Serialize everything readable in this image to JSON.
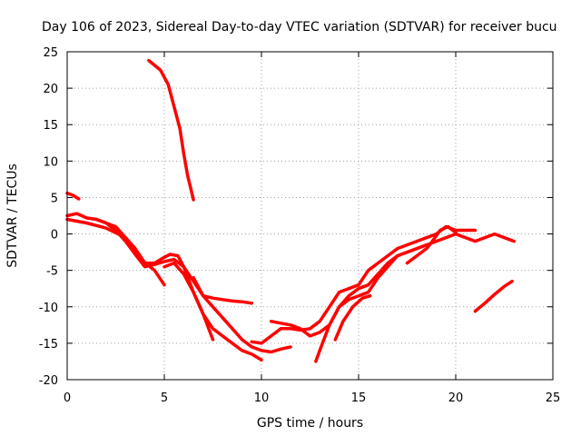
{
  "chart_data": {
    "type": "line",
    "title": "Day 106 of 2023, Sidereal Day-to-day VTEC variation (SDTVAR) for receiver bucu",
    "xlabel": "GPS time / hours",
    "ylabel": "SDTVAR / TECUs",
    "xlim": [
      0,
      25
    ],
    "ylim": [
      -20,
      25
    ],
    "xticks": [
      0,
      5,
      10,
      15,
      20,
      25
    ],
    "yticks": [
      -20,
      -15,
      -10,
      -5,
      0,
      5,
      10,
      15,
      20,
      25
    ],
    "grid": true,
    "color": "#ff0000",
    "series": [
      {
        "name": "seg-a",
        "x": [
          0.0,
          0.3,
          0.6
        ],
        "y": [
          5.6,
          5.3,
          4.8
        ]
      },
      {
        "name": "seg-b",
        "x": [
          0.0,
          0.5,
          1.0,
          1.5,
          2.0,
          2.5,
          3.0,
          3.5,
          4.0,
          4.5,
          5.0,
          5.5,
          6.0,
          6.5,
          7.0,
          7.5,
          8.0,
          8.5,
          9.0,
          9.5
        ],
        "y": [
          2.5,
          2.8,
          2.2,
          2.0,
          1.5,
          0.5,
          -1.0,
          -2.8,
          -4.5,
          -4.2,
          -3.8,
          -3.5,
          -4.5,
          -6.5,
          -8.5,
          -8.8,
          -9.0,
          -9.2,
          -9.3,
          -9.5
        ]
      },
      {
        "name": "seg-c",
        "x": [
          0.0,
          1.0,
          2.0,
          3.0,
          3.5,
          4.0,
          4.5,
          5.0,
          5.3,
          5.7,
          6.0,
          6.5,
          7.0,
          7.5,
          8.0,
          8.5,
          9.0,
          9.5,
          10.0
        ],
        "y": [
          2.0,
          1.5,
          0.8,
          -0.5,
          -2.0,
          -4.0,
          -4.0,
          -3.2,
          -2.8,
          -3.0,
          -4.5,
          -8.0,
          -11.0,
          -13.0,
          -14.0,
          -15.0,
          -16.0,
          -16.5,
          -17.3
        ]
      },
      {
        "name": "seg-d",
        "x": [
          1.5,
          2.5,
          3.0,
          3.8,
          4.5,
          5.0
        ],
        "y": [
          2.0,
          1.0,
          -0.5,
          -3.5,
          -5.0,
          -7.0
        ]
      },
      {
        "name": "seg-e",
        "x": [
          5.0,
          5.5,
          6.0,
          6.5,
          7.0,
          7.5
        ],
        "y": [
          -4.5,
          -4.0,
          -5.5,
          -8.0,
          -11.0,
          -14.5
        ]
      },
      {
        "name": "seg-f",
        "x": [
          6.5,
          7.0,
          7.5,
          8.0,
          8.5,
          9.0,
          9.5,
          10.0,
          10.5,
          11.0,
          11.5
        ],
        "y": [
          -6.0,
          -8.5,
          -10.0,
          -11.5,
          -13.0,
          -14.5,
          -15.5,
          -16.0,
          -16.2,
          -15.8,
          -15.5
        ]
      },
      {
        "name": "seg-g",
        "x": [
          4.2,
          4.8,
          5.2,
          5.5,
          5.8,
          6.0,
          6.2,
          6.5
        ],
        "y": [
          23.8,
          22.5,
          20.5,
          17.5,
          14.5,
          11.0,
          8.0,
          4.7
        ]
      },
      {
        "name": "seg-h",
        "x": [
          9.5,
          10.0,
          10.5,
          11.0,
          11.5,
          12.0,
          12.5,
          13.0,
          13.5,
          14.0,
          14.5,
          15.0,
          15.5,
          16.0,
          16.5,
          17.0,
          17.5,
          18.0,
          18.5,
          19.0,
          19.5,
          20.0,
          20.5,
          21.0
        ],
        "y": [
          -14.8,
          -15.0,
          -14.0,
          -13.0,
          -13.0,
          -13.2,
          -13.0,
          -12.0,
          -10.0,
          -8.0,
          -7.5,
          -7.0,
          -5.0,
          -4.0,
          -3.0,
          -2.0,
          -1.5,
          -1.0,
          -0.5,
          0.0,
          1.0,
          0.5,
          0.5,
          0.5
        ]
      },
      {
        "name": "seg-i",
        "x": [
          10.5,
          11.5,
          12.0,
          12.5,
          13.0,
          13.5,
          14.0,
          14.5,
          15.0,
          15.5,
          16.0,
          16.5,
          17.0,
          17.5,
          18.0,
          18.5,
          19.0,
          19.5,
          20.0,
          20.5,
          21.0,
          21.5,
          22.0,
          22.5,
          23.0
        ],
        "y": [
          -12.0,
          -12.5,
          -13.0,
          -14.0,
          -13.5,
          -12.5,
          -10.0,
          -9.0,
          -8.5,
          -8.0,
          -6.0,
          -4.5,
          -3.0,
          -2.5,
          -2.0,
          -1.5,
          -1.0,
          -0.5,
          0.0,
          -0.5,
          -1.0,
          -0.5,
          0.0,
          -0.5,
          -1.0
        ]
      },
      {
        "name": "seg-j",
        "x": [
          12.8,
          13.0,
          13.5,
          14.0,
          14.5,
          15.0,
          15.5,
          16.0,
          16.5,
          17.0,
          17.5,
          18.0,
          18.5
        ],
        "y": [
          -17.5,
          -16.0,
          -12.5,
          -10.0,
          -8.5,
          -7.5,
          -7.0,
          -5.5,
          -4.0,
          -3.0,
          -2.5,
          -2.0,
          -1.5
        ]
      },
      {
        "name": "seg-k",
        "x": [
          13.8,
          14.2,
          14.7,
          15.2,
          15.6
        ],
        "y": [
          -14.5,
          -12.0,
          -10.0,
          -8.8,
          -8.5
        ]
      },
      {
        "name": "seg-l",
        "x": [
          17.5,
          18.0,
          18.5,
          18.8,
          19.2,
          19.6,
          20.0
        ],
        "y": [
          -4.0,
          -3.0,
          -2.0,
          -1.0,
          0.5,
          1.0,
          0.2
        ]
      },
      {
        "name": "seg-m",
        "x": [
          21.0,
          21.5,
          22.0,
          22.5,
          22.9
        ],
        "y": [
          -10.6,
          -9.5,
          -8.3,
          -7.2,
          -6.5
        ]
      }
    ]
  }
}
